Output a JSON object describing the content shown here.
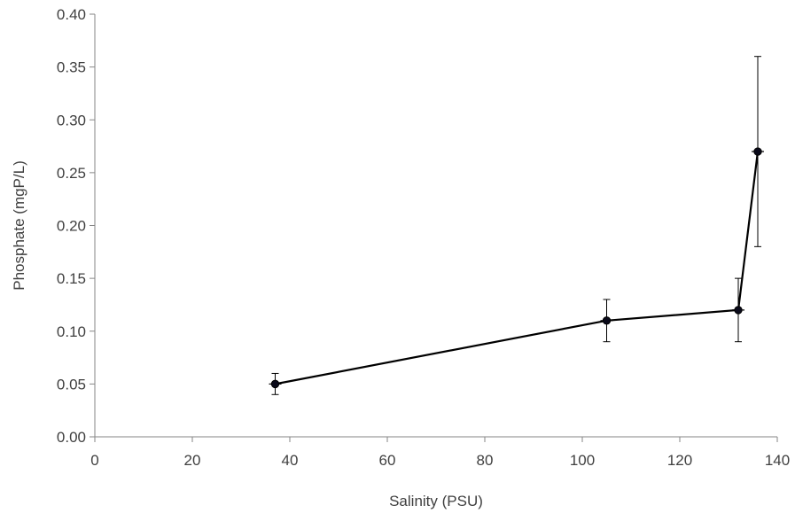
{
  "chart_data": {
    "type": "line",
    "title": "",
    "xlabel": "Salinity (PSU)",
    "ylabel": "Phosphate (mgP/L)",
    "xlim": [
      0,
      140
    ],
    "ylim": [
      0,
      0.4
    ],
    "x_ticks": [
      "0",
      "20",
      "40",
      "60",
      "80",
      "100",
      "120",
      "140"
    ],
    "y_ticks": [
      "0.00",
      "0.05",
      "0.10",
      "0.15",
      "0.20",
      "0.25",
      "0.30",
      "0.35",
      "0.40"
    ],
    "grid": false,
    "legend": "none",
    "series": [
      {
        "color": "#000000",
        "marker": "circle",
        "points": [
          {
            "x": 37,
            "y": 0.05,
            "y_err_low": 0.04,
            "y_err_high": 0.06
          },
          {
            "x": 105,
            "y": 0.11,
            "y_err_low": 0.09,
            "y_err_high": 0.13
          },
          {
            "x": 132,
            "y": 0.12,
            "y_err_low": 0.09,
            "y_err_high": 0.15
          },
          {
            "x": 136,
            "y": 0.27,
            "y_err_low": 0.18,
            "y_err_high": 0.36
          }
        ]
      }
    ]
  }
}
